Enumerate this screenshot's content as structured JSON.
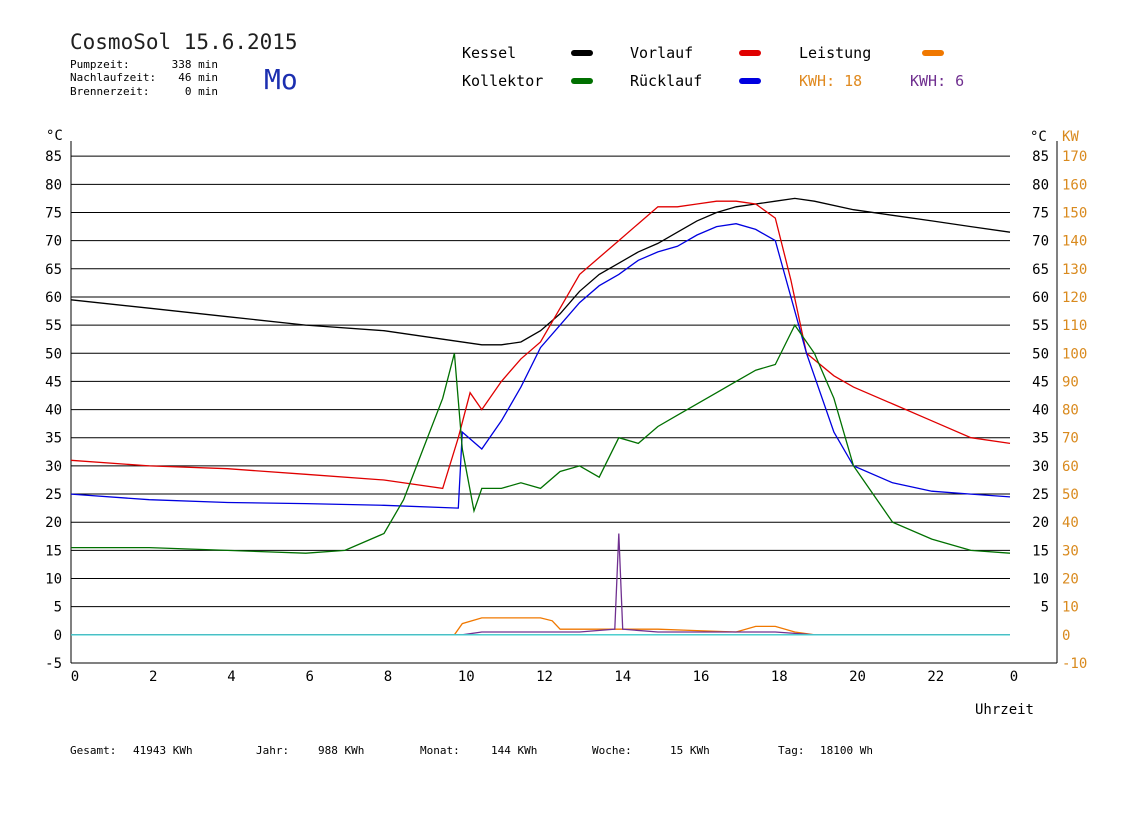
{
  "header": {
    "title": "CosmoSol 15.6.2015",
    "weekday": "Mo",
    "stats": [
      {
        "label": "Pumpzeit:",
        "value": "338 min"
      },
      {
        "label": "Nachlaufzeit:",
        "value": "46 min"
      },
      {
        "label": "Brennerzeit:",
        "value": "0 min"
      }
    ]
  },
  "legend": {
    "items": [
      {
        "label": "Kessel",
        "color": "#000000"
      },
      {
        "label": "Vorlauf",
        "color": "#e00000"
      },
      {
        "label": "Leistung",
        "color": "#f07800"
      },
      {
        "label": "Kollektor",
        "color": "#007000"
      },
      {
        "label": "Rücklauf",
        "color": "#0000e0"
      }
    ],
    "kwh_orange": "KWH: 18",
    "kwh_purple": "KWH: 6",
    "kwh_orange_color": "#e08a20",
    "kwh_purple_color": "#703090"
  },
  "footer": [
    {
      "label": "Gesamt:",
      "value": "41943 KWh"
    },
    {
      "label": "Jahr:",
      "value": "988 KWh"
    },
    {
      "label": "Monat:",
      "value": "144 KWh"
    },
    {
      "label": "Woche:",
      "value": "15 KWh"
    },
    {
      "label": "Tag:",
      "value": "18100 Wh"
    }
  ],
  "chart_data": {
    "type": "line",
    "xlabel": "Uhrzeit",
    "ylabel_left": "°C",
    "ylabel_right_1": "°C",
    "ylabel_right_2": "KW",
    "xlim": [
      0,
      24
    ],
    "ylim": [
      -5,
      90
    ],
    "y2lim": [
      -10,
      180
    ],
    "grid": true,
    "x_ticks": [
      "0",
      "2",
      "4",
      "6",
      "8",
      "10",
      "12",
      "14",
      "16",
      "18",
      "20",
      "22",
      "0"
    ],
    "y_ticks": [
      "-5",
      "0",
      "5",
      "10",
      "15",
      "20",
      "25",
      "30",
      "35",
      "40",
      "45",
      "50",
      "55",
      "60",
      "65",
      "70",
      "75",
      "80",
      "85"
    ],
    "y_ticks_right": [
      "5",
      "10",
      "15",
      "20",
      "25",
      "30",
      "35",
      "40",
      "45",
      "50",
      "55",
      "60",
      "65",
      "70",
      "75",
      "80",
      "85"
    ],
    "y2_ticks": [
      "-10",
      "0",
      "10",
      "20",
      "30",
      "40",
      "50",
      "60",
      "70",
      "80",
      "90",
      "100",
      "110",
      "120",
      "130",
      "140",
      "150",
      "160",
      "170"
    ],
    "series": [
      {
        "name": "Kessel",
        "color": "#000000",
        "x": [
          0,
          2,
          4,
          6,
          8,
          9.5,
          10.5,
          11,
          11.5,
          12,
          12.5,
          13,
          13.5,
          14,
          14.5,
          15,
          15.5,
          16,
          16.5,
          17,
          17.5,
          18,
          18.5,
          19,
          20,
          21,
          22,
          23,
          24
        ],
        "y": [
          59.5,
          58,
          56.5,
          55,
          54,
          52.5,
          51.5,
          51.5,
          52,
          54,
          57,
          61,
          64,
          66,
          68,
          69.5,
          71.5,
          73.5,
          75,
          76,
          76.5,
          77,
          77.5,
          77,
          75.5,
          74.5,
          73.5,
          72.5,
          71.5
        ]
      },
      {
        "name": "Vorlauf",
        "color": "#e00000",
        "x": [
          0,
          2,
          4,
          6,
          8,
          9.5,
          9.9,
          10.2,
          10.5,
          11,
          11.5,
          12,
          12.5,
          13,
          13.5,
          14,
          14.5,
          15,
          15.5,
          16,
          16.5,
          17,
          17.5,
          18,
          18.4,
          18.8,
          19.5,
          20,
          21,
          22,
          23,
          24
        ],
        "y": [
          31,
          30,
          29.5,
          28.5,
          27.5,
          26,
          35,
          43,
          40,
          45,
          49,
          52,
          58,
          64,
          67,
          70,
          73,
          76,
          76,
          76.5,
          77,
          77,
          76.5,
          74,
          63,
          50,
          46,
          44,
          41,
          38,
          35,
          34
        ]
      },
      {
        "name": "Rücklauf",
        "color": "#0000e0",
        "x": [
          0,
          2,
          4,
          6,
          8,
          9.9,
          10,
          10.5,
          11,
          11.5,
          12,
          12.5,
          13,
          13.5,
          14,
          14.5,
          15,
          15.5,
          16,
          16.5,
          17,
          17.5,
          18,
          18.4,
          18.8,
          19.5,
          20,
          21,
          22,
          23,
          24
        ],
        "y": [
          25,
          24,
          23.5,
          23.3,
          23,
          22.5,
          36,
          33,
          38,
          44,
          51,
          55,
          59,
          62,
          64,
          66.5,
          68,
          69,
          71,
          72.5,
          73,
          72,
          70,
          60,
          50,
          36,
          30,
          27,
          25.5,
          25,
          24.5
        ]
      },
      {
        "name": "Kollektor",
        "color": "#007000",
        "x": [
          0,
          2,
          4,
          6,
          7,
          8,
          8.5,
          9,
          9.5,
          9.8,
          10,
          10.3,
          10.5,
          11,
          11.5,
          12,
          12.5,
          13,
          13.5,
          14,
          14.5,
          15,
          15.5,
          16,
          16.5,
          17,
          17.5,
          18,
          18.5,
          19,
          19.5,
          20,
          20.5,
          21,
          22,
          23,
          24
        ],
        "y": [
          15.5,
          15.5,
          15,
          14.5,
          15,
          18,
          24,
          33,
          42,
          50,
          33,
          22,
          26,
          26,
          27,
          26,
          29,
          30,
          28,
          35,
          34,
          37,
          39,
          41,
          43,
          45,
          47,
          48,
          55,
          50,
          42,
          30,
          25,
          20,
          17,
          15,
          14.5
        ]
      },
      {
        "name": "Leistung",
        "color": "#f07800",
        "axis": "right",
        "x": [
          0,
          9.8,
          10,
          10.5,
          11,
          11.5,
          12,
          12.3,
          12.5,
          13,
          14,
          15,
          16,
          17,
          17.5,
          18,
          18.5,
          19,
          24
        ],
        "y": [
          0,
          0,
          4,
          6,
          6,
          6,
          6,
          5,
          2,
          2,
          2,
          2,
          1.5,
          1,
          3,
          3,
          1,
          0,
          0
        ]
      },
      {
        "name": "Kollektor-Leistung",
        "color": "#703090",
        "axis": "right",
        "x": [
          0,
          10,
          10.5,
          11,
          12,
          13,
          13.9,
          14,
          14.1,
          15,
          16,
          17,
          18,
          18.5,
          19,
          24
        ],
        "y": [
          0,
          0,
          1,
          1,
          1,
          1,
          2,
          36,
          2,
          1,
          1,
          1,
          1,
          0.5,
          0,
          0
        ]
      },
      {
        "name": "Basis",
        "color": "#40d0d0",
        "x": [
          0,
          24
        ],
        "y": [
          0,
          0
        ]
      }
    ]
  }
}
